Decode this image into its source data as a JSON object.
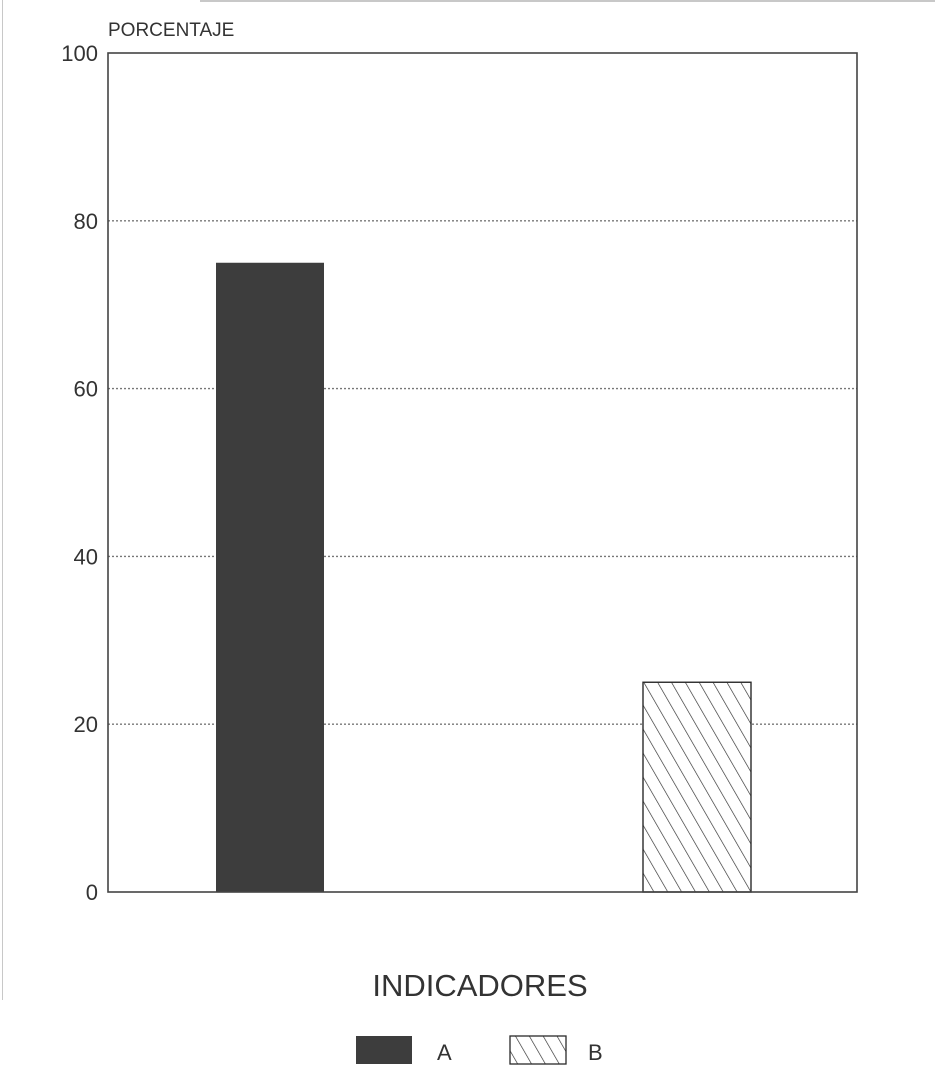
{
  "chart_data": {
    "type": "bar",
    "title": "",
    "xlabel": "INDICADORES",
    "ylabel": "PORCENTAJE",
    "categories": [
      "A",
      "B"
    ],
    "values": [
      75,
      25
    ],
    "ylim": [
      0,
      100
    ],
    "yticks": [
      0,
      20,
      40,
      60,
      80,
      100
    ],
    "grid": true,
    "legend": "bottom-center",
    "series": [
      {
        "name": "A",
        "value": 75,
        "fill": "solid-dark",
        "color": "#3d3d3d"
      },
      {
        "name": "B",
        "value": 25,
        "fill": "diagonal-hatch",
        "color": "#2a2a2a"
      }
    ]
  }
}
